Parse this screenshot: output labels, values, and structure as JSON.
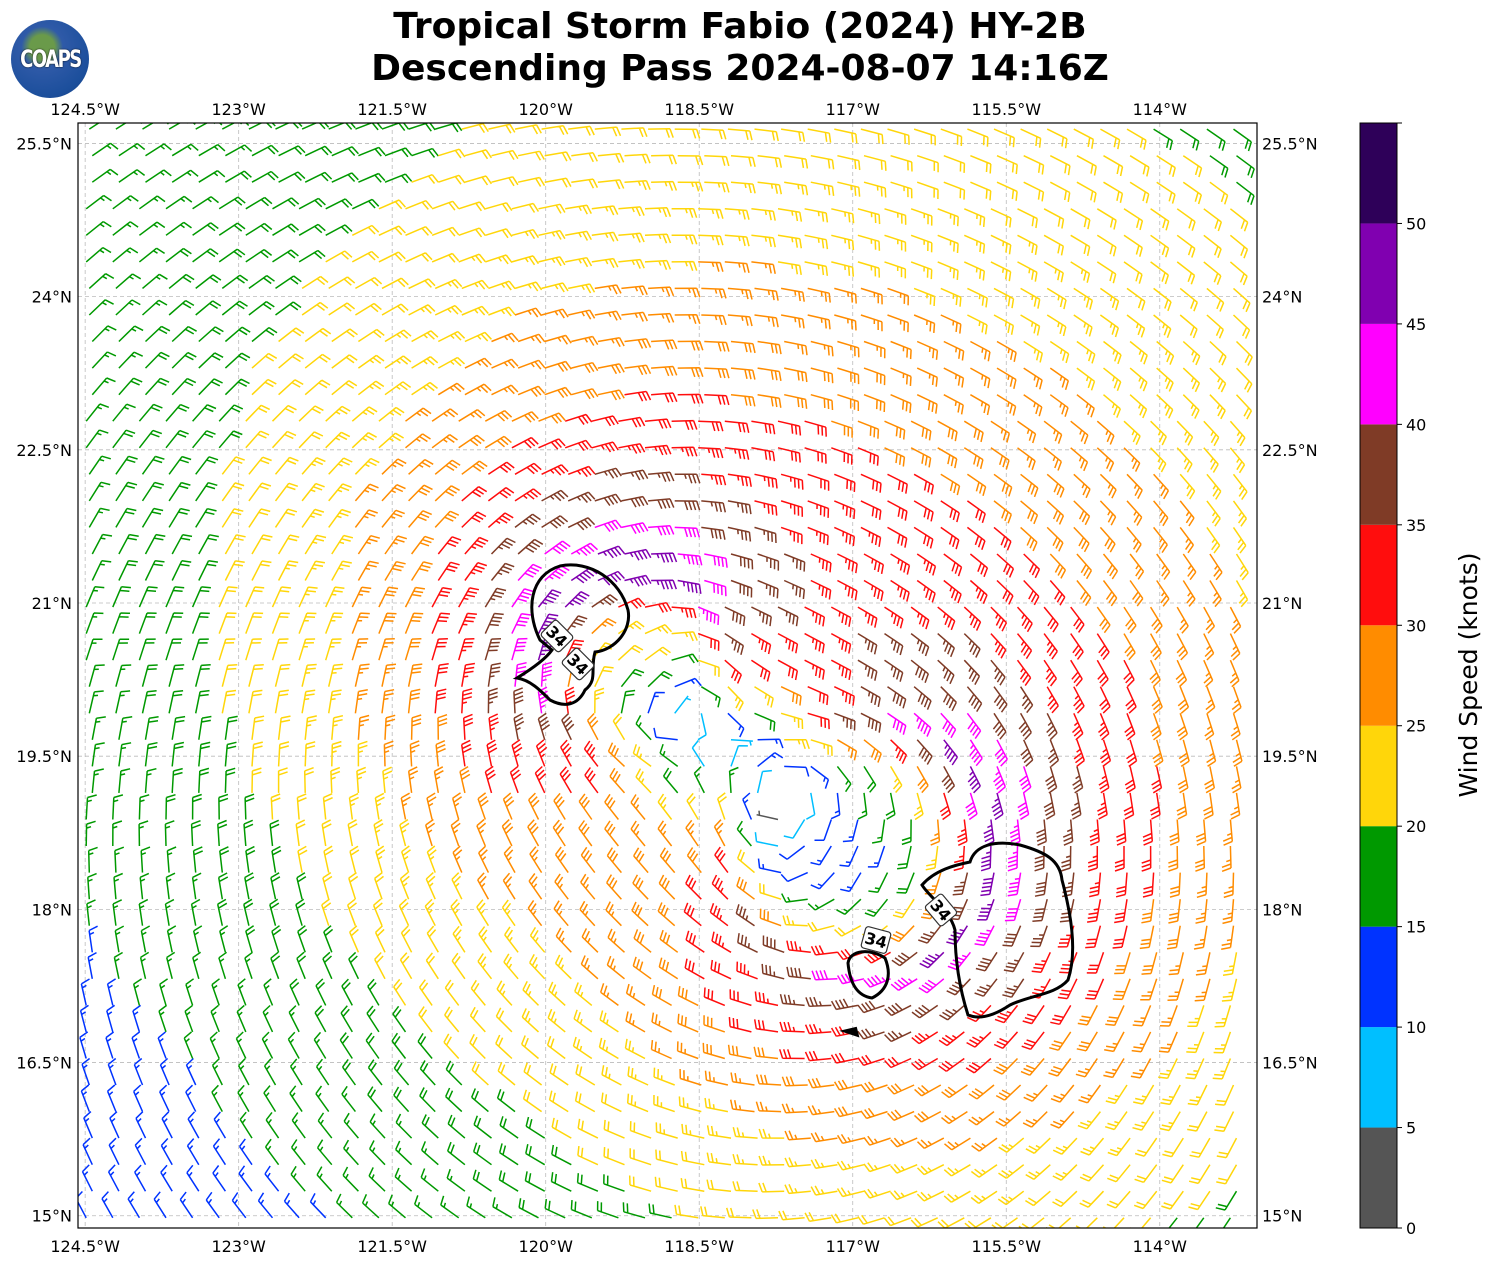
{
  "title_line1": "Tropical Storm Fabio (2024) HY-2B",
  "title_line2": "Descending Pass 2024-08-07 14:16Z",
  "logo_text": "COAPS",
  "chart_data": {
    "type": "wind-barb-map",
    "lon_ticks": [
      "124.5°W",
      "123°W",
      "121.5°W",
      "120°W",
      "118.5°W",
      "117°W",
      "115.5°W",
      "114°W"
    ],
    "lon_values": [
      -124.5,
      -123,
      -121.5,
      -120,
      -118.5,
      -117,
      -115.5,
      -114
    ],
    "lat_ticks": [
      "25.5°N",
      "24°N",
      "22.5°N",
      "21°N",
      "19.5°N",
      "18°N",
      "16.5°N",
      "15°N"
    ],
    "lat_values": [
      25.5,
      24,
      22.5,
      21,
      19.5,
      18,
      16.5,
      15
    ],
    "lon_range": [
      -124.57,
      -113.05
    ],
    "lat_range": [
      14.88,
      25.7
    ],
    "grid": true,
    "contour_level": 34,
    "contour_labels": [
      "34",
      "34",
      "34",
      "34"
    ],
    "colorbar": {
      "label": "Wind Speed (knots)",
      "ticks": [
        "0",
        "5",
        "10",
        "15",
        "20",
        "25",
        "30",
        "35",
        "40",
        "45",
        "50"
      ],
      "bounds": [
        0,
        5,
        10,
        15,
        20,
        25,
        30,
        35,
        40,
        45,
        50,
        55
      ],
      "colors": [
        "#555555",
        "#00bfff",
        "#0033ff",
        "#009900",
        "#ffd60a",
        "#ff8c00",
        "#ff0d0d",
        "#7f3b26",
        "#ff00ff",
        "#8000b0",
        "#2e0059"
      ]
    }
  }
}
